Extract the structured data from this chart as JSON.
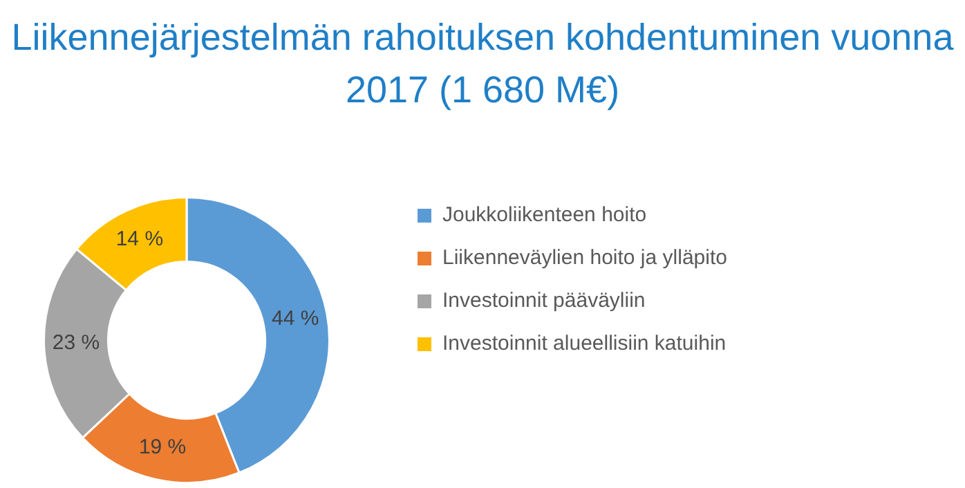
{
  "chart_data": {
    "type": "donut",
    "title": "Liikennejärjestelmän rahoituksen kohdentuminen vuonna 2017 (1 680 M€)",
    "categories": [
      "Joukkoliikenteen hoito",
      "Liikenneväylien hoito ja ylläpito",
      "Investoinnit pääväyliin",
      "Investoinnit alueellisiin katuihin"
    ],
    "values": [
      44,
      19,
      23,
      14
    ],
    "colors": [
      "#5b9bd5",
      "#ed7d31",
      "#a5a5a5",
      "#ffc000"
    ],
    "value_labels": [
      "44 %",
      "19 %",
      "23 %",
      "14 %"
    ],
    "legend": "right"
  }
}
